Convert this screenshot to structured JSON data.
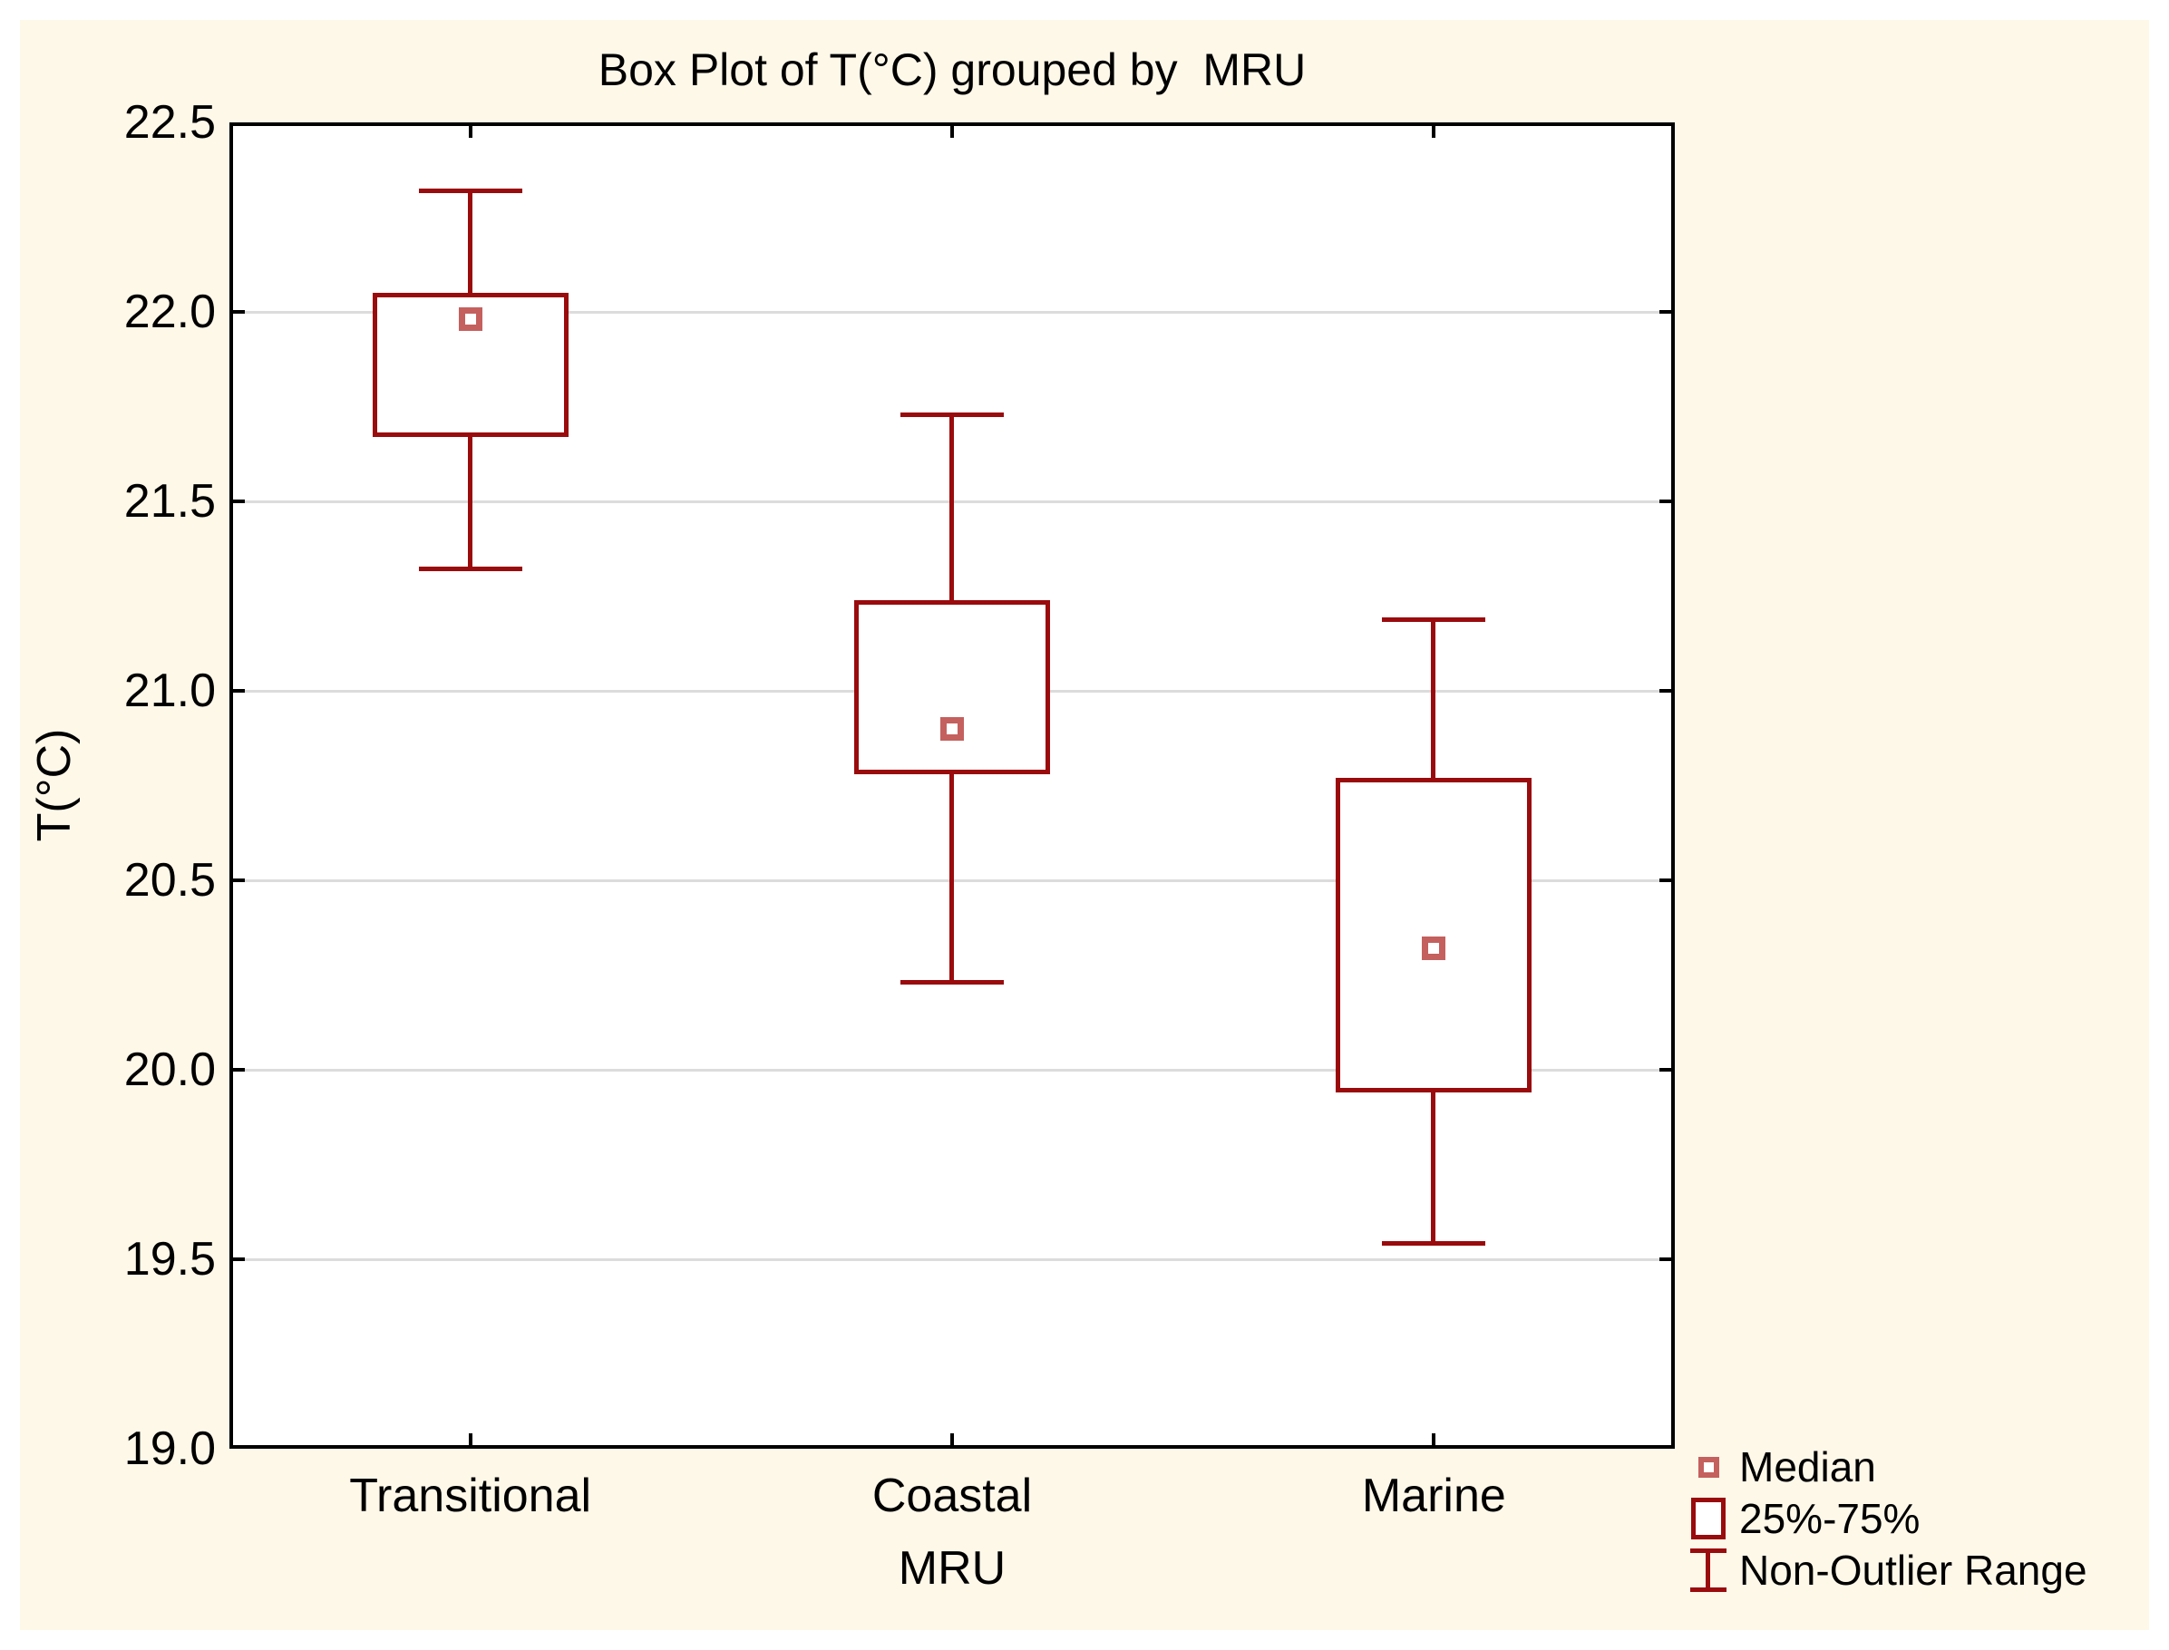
{
  "chart_data": {
    "type": "box",
    "title": "Box Plot of T(°C) grouped by  MRU",
    "xlabel": "MRU",
    "ylabel": "T(°C)",
    "ylim": [
      19.0,
      22.5
    ],
    "yticks": [
      22.5,
      22.0,
      21.5,
      21.0,
      20.5,
      20.0,
      19.5,
      19.0
    ],
    "ytick_format_decimals": 1,
    "grid": "horizontal",
    "legend_position": "bottom-right",
    "categories": [
      "Transitional",
      "Coastal",
      "Marine"
    ],
    "series": [
      {
        "category": "Transitional",
        "whisker_low": 21.32,
        "q1": 21.67,
        "median": 21.98,
        "q3": 22.05,
        "whisker_high": 22.32
      },
      {
        "category": "Coastal",
        "whisker_low": 20.23,
        "q1": 20.78,
        "median": 20.9,
        "q3": 21.24,
        "whisker_high": 21.73
      },
      {
        "category": "Marine",
        "whisker_low": 19.54,
        "q1": 19.94,
        "median": 20.32,
        "q3": 20.77,
        "whisker_high": 21.19
      }
    ],
    "legend": [
      {
        "label": "Median",
        "symbol": "median-square"
      },
      {
        "label": "25%-75%",
        "symbol": "box"
      },
      {
        "label": "Non-Outlier Range",
        "symbol": "whisker"
      }
    ],
    "colors": {
      "box_outline": "#990B0D",
      "median_marker": "#C4605E",
      "canvas_background": "#FEF8E9",
      "plot_background": "#FFFFFF",
      "gridline": "#DCDCDC",
      "text": "#000000"
    }
  }
}
